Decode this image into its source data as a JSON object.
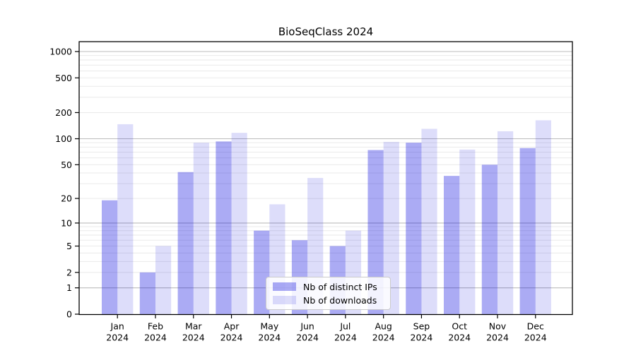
{
  "chart_data": {
    "type": "bar",
    "title": "BioSeqClass 2024",
    "x_categories": [
      "Jan",
      "Feb",
      "Mar",
      "Apr",
      "May",
      "Jun",
      "Jul",
      "Aug",
      "Sep",
      "Oct",
      "Nov",
      "Dec"
    ],
    "x_year_label": "2024",
    "series": [
      {
        "name": "Nb of distinct IPs",
        "fill": "#0202dd",
        "fill_opacity": 0.335,
        "values": [
          19,
          2,
          41,
          93,
          8,
          6,
          5,
          74,
          90,
          37,
          50,
          78
        ]
      },
      {
        "name": "Nb of downloads",
        "fill": "#0202dd",
        "fill_opacity": 0.135,
        "values": [
          147,
          5,
          90,
          117,
          17,
          35,
          8,
          92,
          130,
          75,
          122,
          163
        ]
      }
    ],
    "y_scale": "log10(1+y)",
    "y_tick_values": [
      0,
      1,
      2,
      5,
      10,
      20,
      50,
      100,
      200,
      500,
      1000
    ],
    "y_tick_labels": [
      "0",
      "1",
      "2",
      "5",
      "10",
      "20",
      "50",
      "100",
      "200",
      "500",
      "1000"
    ],
    "ylim_top_value": 1290,
    "grid": {
      "on": true,
      "major_color": "#bcbcbc",
      "minor_color": "#eaeaea"
    },
    "frame_color": "#000000",
    "text_color": "#000000",
    "legend": {
      "position": "lower-center",
      "entries": [
        "Nb of distinct IPs",
        "Nb of downloads"
      ]
    }
  }
}
